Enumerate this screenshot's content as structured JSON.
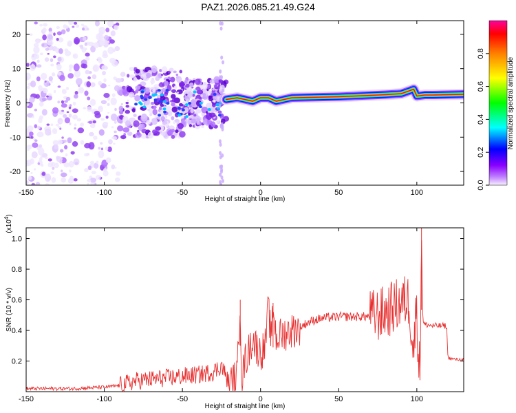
{
  "title": "PAZ1.2026.085.21.49.G24",
  "chart_data": [
    {
      "type": "heatmap",
      "xlabel": "Height of straight line (km)",
      "ylabel": "Frequency (Hz)",
      "xlim": [
        -150,
        130
      ],
      "ylim": [
        -24,
        24
      ],
      "xticks": [
        -150,
        -100,
        -50,
        0,
        50,
        100
      ],
      "yticks": [
        -20,
        -10,
        0,
        10,
        20
      ],
      "colorbar": {
        "label": "Normalized spectral amplitude",
        "range": [
          0,
          1
        ],
        "ticks": [
          "0.0",
          "0.2",
          "0.4",
          "0.6",
          "0.8"
        ],
        "colormap": [
          "#f8f0ff",
          "#8a00ff",
          "#0000ff",
          "#00ffff",
          "#00ff00",
          "#ffff00",
          "#ff8000",
          "#ff0000",
          "#ff00a0"
        ]
      },
      "ridge": {
        "x": [
          -22,
          -15,
          -10,
          -5,
          0,
          5,
          10,
          15,
          20,
          30,
          40,
          50,
          60,
          70,
          80,
          90,
          95,
          98,
          100,
          105,
          110,
          120,
          130
        ],
        "y": [
          1.0,
          1.5,
          1.0,
          0.5,
          1.5,
          1.5,
          0.5,
          1.0,
          1.5,
          1.6,
          1.7,
          1.8,
          2.0,
          2.2,
          2.4,
          2.7,
          3.5,
          4.0,
          2.0,
          2.3,
          2.3,
          2.4,
          2.5
        ]
      }
    },
    {
      "type": "line",
      "xlabel": "Height of straight line (km)",
      "ylabel": "SNR (10 * v/v)",
      "yscale_label": "(x10",
      "yscale_exp": "4",
      "xlim": [
        -150,
        130
      ],
      "ylim": [
        0,
        1.07
      ],
      "xticks": [
        -150,
        -100,
        -50,
        0,
        50,
        100
      ],
      "yticks": [
        "0.2",
        "0.4",
        "0.6",
        "0.8",
        "1.0"
      ],
      "color": "#e83030",
      "series": [
        {
          "x": [
            -150,
            -120,
            -100,
            -90,
            -80,
            -70,
            -60,
            -50,
            -40,
            -30,
            -25,
            -20,
            -15,
            -13,
            -12,
            -10,
            -8,
            -5,
            -3,
            0,
            3,
            5,
            7,
            8,
            10,
            15,
            20,
            25,
            30,
            35,
            40,
            50,
            60,
            70,
            75,
            80,
            85,
            90,
            95,
            98,
            100,
            101,
            102,
            103,
            104,
            105,
            110,
            115,
            119,
            120,
            125,
            130
          ],
          "y": [
            0.02,
            0.02,
            0.03,
            0.04,
            0.07,
            0.08,
            0.09,
            0.1,
            0.11,
            0.13,
            0.17,
            0.05,
            0.1,
            0.6,
            0.08,
            0.2,
            0.25,
            0.35,
            0.3,
            0.25,
            0.3,
            0.55,
            0.32,
            0.58,
            0.35,
            0.38,
            0.4,
            0.42,
            0.45,
            0.47,
            0.48,
            0.49,
            0.49,
            0.49,
            0.5,
            0.52,
            0.55,
            0.58,
            0.6,
            0.25,
            0.62,
            0.2,
            0.15,
            1.07,
            0.45,
            0.44,
            0.43,
            0.43,
            0.43,
            0.22,
            0.21,
            0.21
          ]
        }
      ]
    }
  ]
}
